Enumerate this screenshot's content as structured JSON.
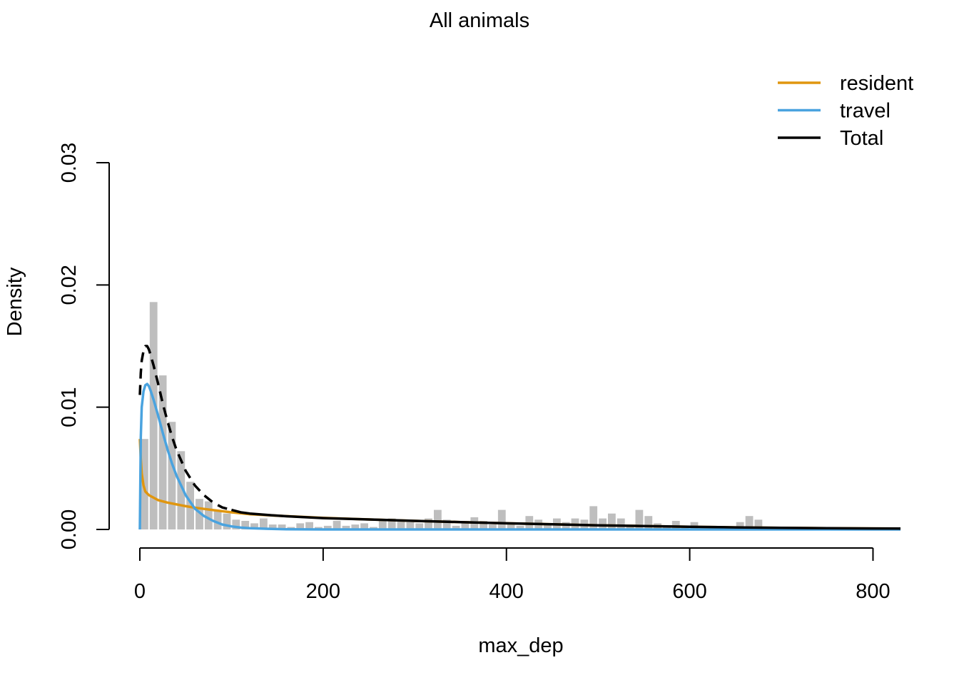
{
  "chart_data": {
    "type": "histogram",
    "title": "All animals",
    "xlabel": "max_dep",
    "ylabel": "Density",
    "xlim": [
      0,
      830
    ],
    "ylim": [
      0,
      0.03
    ],
    "x_ticks": [
      0,
      200,
      400,
      600,
      800
    ],
    "x_tick_labels": [
      "0",
      "200",
      "400",
      "600",
      "800"
    ],
    "y_ticks": [
      0,
      0.01,
      0.02,
      0.03
    ],
    "y_tick_labels": [
      "0.00",
      "0.01",
      "0.02",
      "0.03"
    ],
    "grid": false,
    "legend_position": "top-right",
    "bin_width": 10,
    "bins": {
      "start": 0,
      "values": [
        0.0074,
        0.0186,
        0.0126,
        0.0088,
        0.0064,
        0.0039,
        0.0025,
        0.0023,
        0.0016,
        0.0013,
        0.0008,
        0.0007,
        0.0005,
        0.0009,
        0.0004,
        0.0004,
        0.0002,
        0.0005,
        0.0006,
        0.0002,
        0.0003,
        0.0007,
        0.0003,
        0.0004,
        0.0005,
        0.0002,
        0.0008,
        0.0009,
        0.0007,
        0.0006,
        0.0005,
        0.0009,
        0.0016,
        0.0008,
        0.0003,
        0.0007,
        0.001,
        0.0007,
        0.0004,
        0.0016,
        0.0005,
        0.0003,
        0.0011,
        0.0008,
        0.0005,
        0.0009,
        0.0006,
        0.0009,
        0.0008,
        0.0019,
        0.0009,
        0.0013,
        0.0009,
        0.0003,
        0.0016,
        0.0011,
        0.0005,
        0.0002,
        0.0007,
        0.0003,
        0.0006,
        0.0001,
        0.0003,
        0.0001,
        0.0002,
        0.0006,
        0.0011,
        0.0008,
        0.0001,
        0.0001,
        0.0001,
        0.0001,
        0.0001,
        0.0001,
        0.0001,
        0.0001,
        0.0001,
        0.0001,
        0.0001,
        0.0001,
        0.0001,
        0.0001,
        0.0001
      ]
    },
    "series": [
      {
        "name": "resident",
        "color": "#e0960f",
        "style": "solid",
        "x": [
          0,
          1,
          2,
          4,
          6,
          10,
          15,
          20,
          30,
          40,
          50,
          60,
          70,
          80,
          100,
          120,
          150,
          200,
          250,
          300,
          350,
          400,
          450,
          500,
          550,
          600,
          650,
          700,
          750,
          800,
          830
        ],
        "y": [
          0.0074,
          0.0058,
          0.0046,
          0.0036,
          0.0031,
          0.0028,
          0.0026,
          0.0024,
          0.0022,
          0.00205,
          0.0019,
          0.00178,
          0.00168,
          0.00158,
          0.0014,
          0.00125,
          0.00112,
          0.00095,
          0.00082,
          0.0007,
          0.0006,
          0.0005,
          0.00042,
          0.00034,
          0.00028,
          0.00022,
          0.00017,
          0.00013,
          0.0001,
          8e-05,
          7e-05
        ]
      },
      {
        "name": "travel",
        "color": "#4aa3df",
        "style": "solid",
        "x": [
          0,
          1,
          2,
          4,
          6,
          8,
          10,
          12,
          15,
          20,
          25,
          30,
          35,
          40,
          50,
          60,
          70,
          80,
          90,
          100,
          110,
          120,
          140,
          160,
          200,
          300,
          400,
          500,
          600,
          700,
          830
        ],
        "y": [
          0.0,
          0.0075,
          0.01,
          0.0113,
          0.0118,
          0.0119,
          0.0117,
          0.0113,
          0.0106,
          0.0093,
          0.0079,
          0.0066,
          0.0054,
          0.0044,
          0.0028,
          0.0017,
          0.0011,
          0.0007,
          0.0004,
          0.00025,
          0.00015,
          0.0001,
          5e-05,
          2e-05,
          0.0,
          0.0,
          0.0,
          0.0,
          0.0,
          0.0,
          0.0
        ]
      },
      {
        "name": "Total",
        "color": "#000000",
        "style": "dashed-then-solid",
        "x": [
          0,
          1,
          2,
          4,
          6,
          8,
          10,
          12,
          15,
          20,
          25,
          30,
          35,
          40,
          50,
          60,
          70,
          80,
          90,
          100,
          110,
          120,
          140,
          160,
          200,
          250,
          300,
          350,
          400,
          450,
          500,
          550,
          600,
          650,
          700,
          750,
          800,
          830
        ],
        "y": [
          0.011,
          0.0128,
          0.0138,
          0.0146,
          0.015,
          0.015,
          0.0147,
          0.0142,
          0.0134,
          0.0119,
          0.0103,
          0.0089,
          0.0076,
          0.0065,
          0.0048,
          0.0036,
          0.0028,
          0.0022,
          0.0018,
          0.0016,
          0.0014,
          0.0013,
          0.00118,
          0.00108,
          0.00093,
          0.00082,
          0.0007,
          0.0006,
          0.0005,
          0.00042,
          0.00034,
          0.00028,
          0.00022,
          0.00017,
          0.00013,
          0.0001,
          8e-05,
          7e-05
        ]
      }
    ],
    "total_dash_until_x": 100,
    "bar_color": "#bebebe"
  }
}
